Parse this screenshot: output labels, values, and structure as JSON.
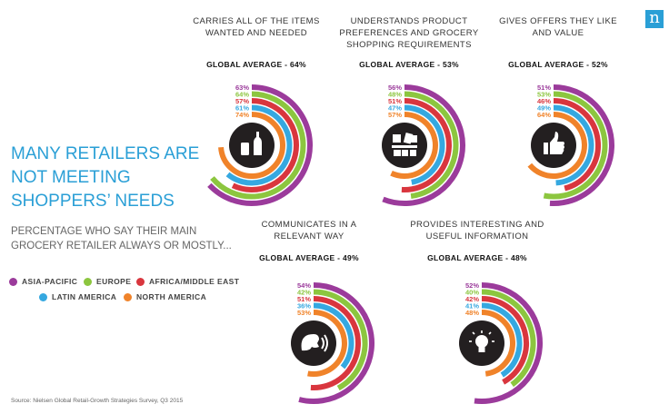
{
  "logo": "n",
  "headline": [
    "MANY RETAILERS ARE",
    "NOT MEETING",
    "SHOPPERS’ NEEDS"
  ],
  "subtitle": "PERCENTAGE WHO SAY THEIR MAIN GROCERY RETAILER ALWAYS OR MOSTLY...",
  "source": "Source: Nielsen Global Retail-Growth Strategies Survey, Q3 2015",
  "chart_data": {
    "type": "radial-bar",
    "legend": [
      {
        "name": "ASIA-PACIFIC",
        "color": "#9b3b9b"
      },
      {
        "name": "EUROPE",
        "color": "#8cc63f"
      },
      {
        "name": "AFRICA/MIDDLE EAST",
        "color": "#d9363e"
      },
      {
        "name": "LATIN AMERICA",
        "color": "#35a8e0"
      },
      {
        "name": "NORTH AMERICA",
        "color": "#f0832a"
      }
    ],
    "charts": [
      {
        "title": [
          "CARRIES ALL OF THE ITEMS",
          "WANTED AND NEEDED"
        ],
        "average": "GLOBAL AVERAGE - 64%",
        "icon": "bottles-icon",
        "values": [
          63,
          64,
          57,
          61,
          74
        ]
      },
      {
        "title": [
          "UNDERSTANDS PRODUCT",
          "PREFERENCES AND GROCERY",
          "SHOPPING REQUIREMENTS"
        ],
        "average": "GLOBAL AVERAGE - 53%",
        "icon": "products-icon",
        "values": [
          56,
          48,
          51,
          47,
          57
        ]
      },
      {
        "title": [
          "GIVES OFFERS THEY LIKE",
          "AND VALUE"
        ],
        "average": "GLOBAL AVERAGE - 52%",
        "icon": "thumbs-up-icon",
        "values": [
          51,
          53,
          46,
          49,
          64
        ]
      },
      {
        "title": [
          "COMMUNICATES IN A",
          "RELEVANT WAY"
        ],
        "average": "GLOBAL AVERAGE - 49%",
        "icon": "speech-icon",
        "values": [
          54,
          42,
          51,
          36,
          53
        ]
      },
      {
        "title": [
          "PROVIDES INTERESTING AND",
          "USEFUL INFORMATION"
        ],
        "average": "GLOBAL AVERAGE - 48%",
        "icon": "lightbulb-icon",
        "values": [
          52,
          40,
          42,
          41,
          48
        ]
      }
    ]
  }
}
